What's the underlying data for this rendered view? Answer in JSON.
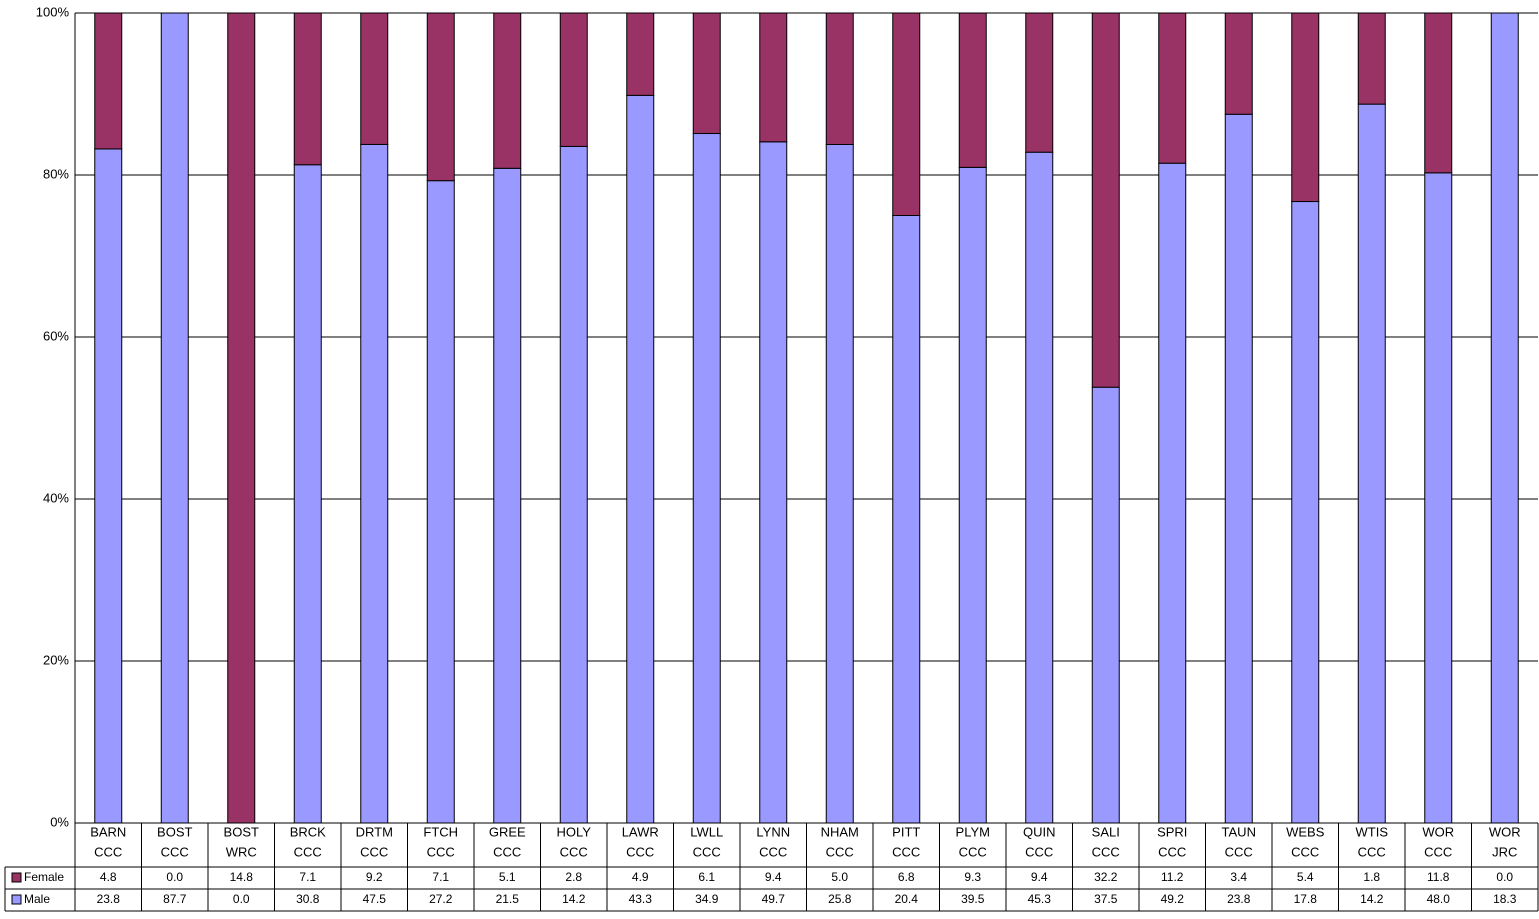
{
  "chart_data": {
    "type": "bar",
    "stacked": "percent",
    "categories": [
      [
        "BARN",
        "CCC"
      ],
      [
        "BOST",
        "CCC"
      ],
      [
        "BOST",
        "WRC"
      ],
      [
        "BRCK",
        "CCC"
      ],
      [
        "DRTM",
        "CCC"
      ],
      [
        "FTCH",
        "CCC"
      ],
      [
        "GREE",
        "CCC"
      ],
      [
        "HOLY",
        "CCC"
      ],
      [
        "LAWR",
        "CCC"
      ],
      [
        "LWLL",
        "CCC"
      ],
      [
        "LYNN",
        "CCC"
      ],
      [
        "NHAM",
        "CCC"
      ],
      [
        "PITT",
        "CCC"
      ],
      [
        "PLYM",
        "CCC"
      ],
      [
        "QUIN",
        "CCC"
      ],
      [
        "SALI",
        "CCC"
      ],
      [
        "SPRI",
        "CCC"
      ],
      [
        "TAUN",
        "CCC"
      ],
      [
        "WEBS",
        "CCC"
      ],
      [
        "WTIS",
        "CCC"
      ],
      [
        "WOR",
        "CCC"
      ],
      [
        "WOR",
        "JRC"
      ]
    ],
    "series": [
      {
        "name": "Female",
        "color": "#993366",
        "values": [
          4.8,
          0,
          14.8,
          7.1,
          9.2,
          7.1,
          5.1,
          2.8,
          4.9,
          6.1,
          9.4,
          5,
          6.8,
          9.3,
          9.4,
          32.2,
          11.2,
          3.4,
          5.4,
          1.8,
          11.8,
          0
        ],
        "value_labels": [
          "4.8",
          "0.0",
          "14.8",
          "7.1",
          "9.2",
          "7.1",
          "5.1",
          "2.8",
          "4.9",
          "6.1",
          "9.4",
          "5.0",
          "6.8",
          "9.3",
          "9.4",
          "32.2",
          "11.2",
          "3.4",
          "5.4",
          "1.8",
          "11.8",
          "0.0"
        ]
      },
      {
        "name": "Male",
        "color": "#9999ff",
        "values": [
          23.8,
          87.7,
          0,
          30.8,
          47.5,
          27.2,
          21.5,
          14.2,
          43.3,
          34.9,
          49.7,
          25.8,
          20.4,
          39.5,
          45.3,
          37.5,
          49.2,
          23.8,
          17.8,
          14.2,
          48,
          18.3
        ],
        "value_labels": [
          "23.8",
          "87.7",
          "0.0",
          "30.8",
          "47.5",
          "27.2",
          "21.5",
          "14.2",
          "43.3",
          "34.9",
          "49.7",
          "25.8",
          "20.4",
          "39.5",
          "45.3",
          "37.5",
          "49.2",
          "23.8",
          "17.8",
          "14.2",
          "48.0",
          "18.3"
        ]
      }
    ],
    "ylim": [
      0,
      100
    ],
    "yticks": [
      {
        "value": 0,
        "label": "0%"
      },
      {
        "value": 20,
        "label": "20%"
      },
      {
        "value": 40,
        "label": "40%"
      },
      {
        "value": 60,
        "label": "60%"
      },
      {
        "value": 80,
        "label": "80%"
      },
      {
        "value": 100,
        "label": "100%"
      }
    ],
    "grid": true
  }
}
